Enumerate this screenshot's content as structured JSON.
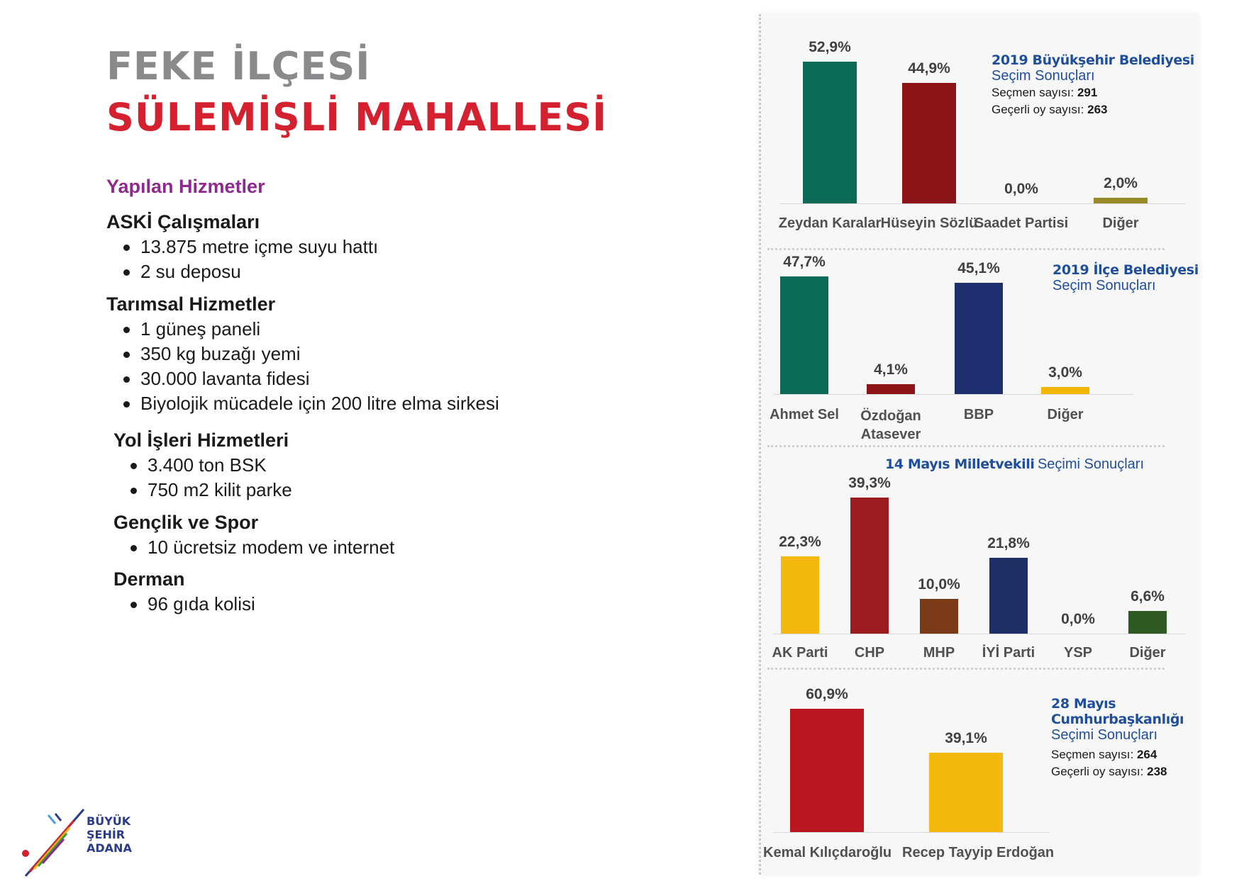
{
  "title": {
    "line1": "FEKE İLÇESİ",
    "line2": "SÜLEMİŞLİ MAHALLESİ"
  },
  "services": {
    "heading": "Yapılan Hizmetler",
    "groups": [
      {
        "title": "ASKİ Çalışmaları",
        "items": [
          "13.875 metre içme suyu hattı",
          "2 su deposu"
        ]
      },
      {
        "title": "Tarımsal Hizmetler",
        "items": [
          "1 güneş paneli",
          "350 kg buzağı yemi",
          "30.000 lavanta fidesi",
          "Biyolojik mücadele için 200 litre elma sirkesi"
        ]
      },
      {
        "title": "Yol İşleri Hizmetleri",
        "items": [
          "3.400 ton BSK",
          "750 m2 kilit parke"
        ]
      },
      {
        "title": "Gençlik ve Spor",
        "items": [
          "10 ücretsiz modem ve internet"
        ]
      },
      {
        "title": "Derman",
        "items": [
          "96 gıda kolisi"
        ]
      }
    ]
  },
  "logo": {
    "line1": "BÜYÜK",
    "line2": "ŞEHİR",
    "line3": "ADANA"
  },
  "chart_data": [
    {
      "type": "bar",
      "title_bold": "2019 Büyükşehir Belediyesi",
      "title_sub": "Seçim Sonuçları",
      "voters_label": "Seçmen sayısı:",
      "voters": "291",
      "valid_label": "Geçerli oy sayısı:",
      "valid": "263",
      "categories": [
        "Zeydan Karalar",
        "Hüseyin Sözlü",
        "Saadet Partisi",
        "Diğer"
      ],
      "values": [
        52.9,
        44.9,
        0.0,
        2.0
      ],
      "labels": [
        "52,9%",
        "44,9%",
        "0,0%",
        "2,0%"
      ],
      "colors": [
        "#0b6b57",
        "#8c1418",
        "#8a8a8a",
        "#9a8a2a"
      ],
      "ylim": [
        0,
        52.9
      ]
    },
    {
      "type": "bar",
      "title_bold": "2019 İlçe Belediyesi",
      "title_sub": "Seçim Sonuçları",
      "categories": [
        "Ahmet Sel",
        "Özdoğan Atasever",
        "BBP",
        "Diğer"
      ],
      "values": [
        47.7,
        4.1,
        45.1,
        3.0
      ],
      "labels": [
        "47,7%",
        "4,1%",
        "45,1%",
        "3,0%"
      ],
      "colors": [
        "#0b6b57",
        "#8c1418",
        "#1d2f6e",
        "#f2b705"
      ],
      "ylim": [
        0,
        47.7
      ]
    },
    {
      "type": "bar",
      "title_bold": "14 Mayıs Milletvekili",
      "title_sub": "Seçimi Sonuçları",
      "categories": [
        "AK Parti",
        "CHP",
        "MHP",
        "İYİ Parti",
        "YSP",
        "Diğer"
      ],
      "values": [
        22.3,
        39.3,
        10.0,
        21.8,
        0.0,
        6.6
      ],
      "labels": [
        "22,3%",
        "39,3%",
        "10,0%",
        "21,8%",
        "0,0%",
        "6,6%"
      ],
      "colors": [
        "#f5b80f",
        "#9b1b20",
        "#7a3a18",
        "#1e2f66",
        "#999999",
        "#2f5a24"
      ],
      "ylim": [
        0,
        39.3
      ]
    },
    {
      "type": "bar",
      "title_bold1": "28 Mayıs",
      "title_bold2": "Cumhurbaşkanlığı",
      "title_sub": "Seçimi Sonuçları",
      "voters_label": "Seçmen sayısı:",
      "voters": "264",
      "valid_label": "Geçerli oy sayısı:",
      "valid": "238",
      "categories": [
        "Kemal Kılıçdaroğlu",
        "Recep Tayyip Erdoğan"
      ],
      "values": [
        60.9,
        39.1
      ],
      "labels": [
        "60,9%",
        "39,1%"
      ],
      "colors": [
        "#b8171f",
        "#f5b80f"
      ],
      "ylim": [
        0,
        60.9
      ]
    }
  ]
}
